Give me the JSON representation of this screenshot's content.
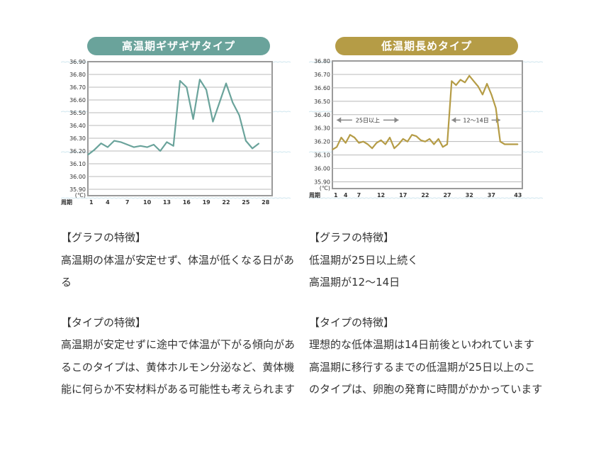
{
  "chart_data": [
    {
      "type": "line",
      "title": "高温期ギザギザタイプ",
      "y_unit": "(℃)",
      "x_axis_prefix": "周期",
      "x_ticks": [
        "1",
        "4",
        "7",
        "10",
        "13",
        "16",
        "19",
        "22",
        "25",
        "28"
      ],
      "y_ticks": [
        "36.90",
        "36.80",
        "36.70",
        "36.60",
        "36.50",
        "36.40",
        "36.30",
        "36.20",
        "36.10",
        "36.00",
        "35.90"
      ],
      "ylim": [
        35.85,
        36.9
      ],
      "xlim": [
        1,
        29
      ],
      "grid": true,
      "color": "#6aa39b",
      "x": [
        1,
        2,
        3,
        4,
        5,
        6,
        7,
        8,
        9,
        10,
        11,
        12,
        13,
        14,
        15,
        16,
        17,
        18,
        19,
        20,
        21,
        22,
        23,
        24,
        25,
        26,
        27
      ],
      "values": [
        36.17,
        36.21,
        36.26,
        36.23,
        36.28,
        36.27,
        36.25,
        36.23,
        36.24,
        36.23,
        36.25,
        36.2,
        36.27,
        36.24,
        36.75,
        36.7,
        36.45,
        36.76,
        36.68,
        36.43,
        36.58,
        36.73,
        36.58,
        36.48,
        36.28,
        36.22,
        36.26
      ]
    },
    {
      "type": "line",
      "title": "低温期長めタイプ",
      "y_unit": "(℃)",
      "x_axis_prefix": "周期",
      "x_ticks": [
        "1",
        "4",
        "7",
        "12",
        "17",
        "22",
        "27",
        "32",
        "37",
        "43"
      ],
      "x_tick_positions": [
        1,
        4,
        7,
        12,
        17,
        22,
        27,
        32,
        37,
        43
      ],
      "y_ticks": [
        "36.80",
        "36.70",
        "36.60",
        "36.50",
        "36.40",
        "36.30",
        "36.20",
        "36.10",
        "36.00",
        "35.90"
      ],
      "ylim": [
        35.85,
        36.8
      ],
      "xlim": [
        1,
        44
      ],
      "grid": true,
      "color": "#b59c46",
      "annotations": [
        {
          "text": "25日以上",
          "from_x": 2,
          "to_x": 16,
          "y": 36.36
        },
        {
          "text": "12〜14日",
          "from_x": 28,
          "to_x": 39,
          "y": 36.36
        }
      ],
      "x": [
        1,
        2,
        3,
        4,
        5,
        6,
        7,
        8,
        9,
        10,
        11,
        12,
        13,
        14,
        15,
        16,
        17,
        18,
        19,
        20,
        21,
        22,
        23,
        24,
        25,
        26,
        27,
        28,
        29,
        30,
        31,
        32,
        33,
        34,
        35,
        36,
        37,
        38,
        39,
        40,
        41,
        42,
        43
      ],
      "values": [
        36.14,
        36.16,
        36.23,
        36.19,
        36.25,
        36.23,
        36.19,
        36.2,
        36.18,
        36.15,
        36.19,
        36.21,
        36.18,
        36.23,
        36.15,
        36.18,
        36.22,
        36.2,
        36.25,
        36.24,
        36.21,
        36.2,
        36.22,
        36.18,
        36.22,
        36.16,
        36.18,
        36.65,
        36.62,
        36.66,
        36.64,
        36.69,
        36.65,
        36.61,
        36.55,
        36.63,
        36.55,
        36.45,
        36.2,
        36.18,
        36.18,
        36.18,
        36.18
      ]
    }
  ],
  "left": {
    "heading1": "【グラフの特徴】",
    "body1": "高温期の体温が安定せず、体温が低くなる日がある",
    "heading2": "【タイプの特徴】",
    "body2": "高温期が安定せずに途中で体温が下がる傾向があるこのタイプは、黄体ホルモン分泌など、黄体機能に何らか不安材料がある可能性も考えられます"
  },
  "right": {
    "heading1": "【グラフの特徴】",
    "body1a": "低温期が25日以上続く",
    "body1b": "高温期が12〜14日",
    "heading2": "【タイプの特徴】",
    "body2": "理想的な低体温期は14日前後といわれています　高温期に移行するまでの低温期が25日以上のこのタイプは、卵胞の発育に時間がかかっています"
  }
}
